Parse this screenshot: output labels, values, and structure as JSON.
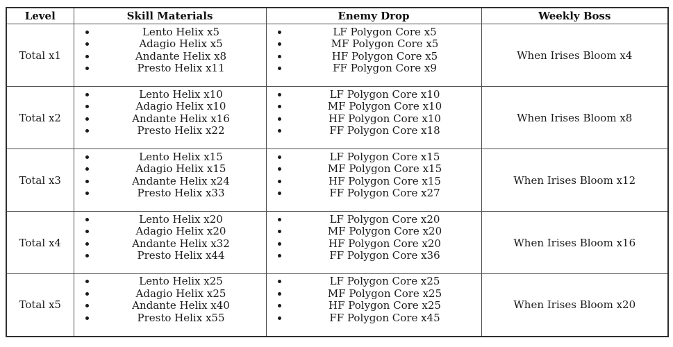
{
  "table": {
    "columns": [
      {
        "label": "Level"
      },
      {
        "label": "Skill Materials"
      },
      {
        "label": "Enemy Drop"
      },
      {
        "label": "Weekly Boss"
      }
    ],
    "rows": [
      {
        "level": "Total x1",
        "skill_materials": [
          "Lento Helix x5",
          "Adagio Helix x5",
          "Andante Helix x8",
          "Presto Helix x11"
        ],
        "enemy_drop": [
          "LF Polygon Core x5",
          "MF Polygon Core x5",
          "HF Polygon Core x5",
          "FF Polygon Core x9"
        ],
        "weekly_boss": "When Irises Bloom x4"
      },
      {
        "level": "Total x2",
        "skill_materials": [
          "Lento Helix x10",
          "Adagio Helix x10",
          "Andante Helix x16",
          "Presto Helix x22"
        ],
        "enemy_drop": [
          "LF Polygon Core x10",
          "MF Polygon Core x10",
          "HF Polygon Core x10",
          "FF Polygon Core x18"
        ],
        "weekly_boss": "When Irises Bloom x8"
      },
      {
        "level": "Total x3",
        "skill_materials": [
          "Lento Helix x15",
          "Adagio Helix x15",
          "Andante Helix x24",
          "Presto Helix x33"
        ],
        "enemy_drop": [
          "LF Polygon Core x15",
          "MF Polygon Core x15",
          "HF Polygon Core x15",
          "FF Polygon Core x27"
        ],
        "weekly_boss": "When Irises Bloom x12"
      },
      {
        "level": "Total x4",
        "skill_materials": [
          "Lento Helix x20",
          "Adagio Helix x20",
          "Andante Helix x32",
          "Presto Helix x44"
        ],
        "enemy_drop": [
          "LF Polygon Core x20",
          "MF Polygon Core x20",
          "HF Polygon Core x20",
          "FF Polygon Core x36"
        ],
        "weekly_boss": "When Irises Bloom x16"
      },
      {
        "level": "Total x5",
        "skill_materials": [
          "Lento Helix x25",
          "Adagio Helix x25",
          "Andante Helix x40",
          "Presto Helix x55"
        ],
        "enemy_drop": [
          "LF Polygon Core x25",
          "MF Polygon Core x25",
          "HF Polygon Core x25",
          "FF Polygon Core x45"
        ],
        "weekly_boss": "When Irises Bloom x20"
      }
    ]
  },
  "colors": {
    "outer_border": "#2e2e2e",
    "inner_border": "#4d4d4d",
    "text": "#1b1b1b",
    "background": "#ffffff"
  }
}
